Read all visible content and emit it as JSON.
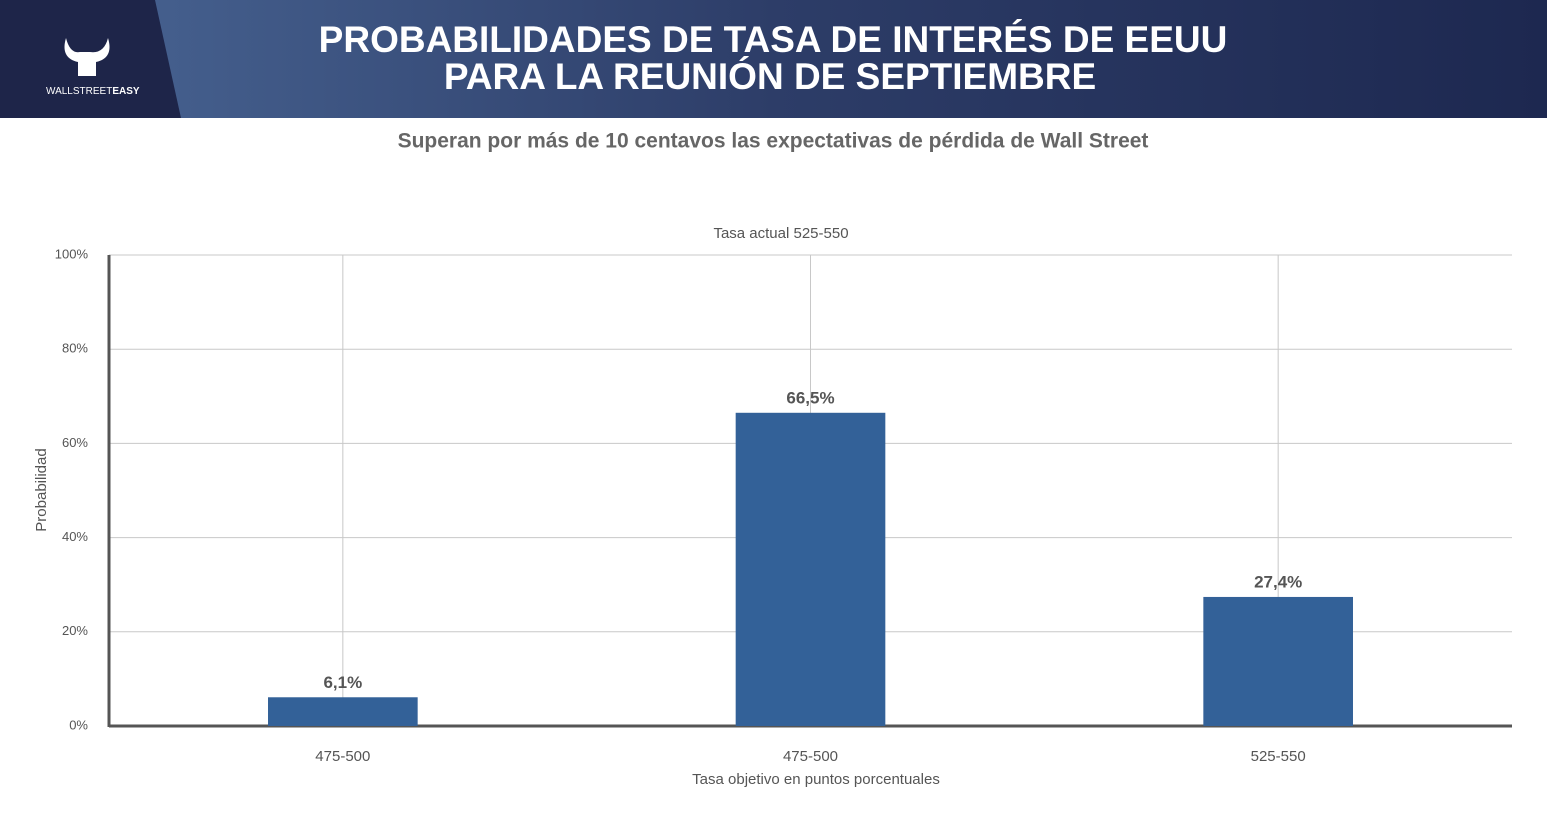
{
  "logo": {
    "text": "WALLSTREET",
    "bold": "EASY"
  },
  "header": {
    "title": [
      "PROBABILIDADES DE TASA DE INTERÉS DE EEUU",
      "PARA LA REUNIÓN DE SEPTIEMBRE"
    ]
  },
  "subtitle": "Superan por más de 10 centavos las expectativas de pérdida de Wall Street",
  "chart_data": {
    "type": "bar",
    "title": "Tasa actual 525-550",
    "x_label": "Tasa objetivo en puntos porcentuales",
    "y_label": "Probabilidad",
    "categories": [
      "475-500",
      "475-500",
      "525-550"
    ],
    "values": [
      6.1,
      66.5,
      27.4
    ],
    "value_labels": [
      "6,1%",
      "66,5%",
      "27,4%"
    ],
    "color": "#336198",
    "ylim": [
      0,
      100
    ],
    "yticks": [
      {
        "value": 0,
        "label": "0%"
      },
      {
        "value": 20,
        "label": "20%"
      },
      {
        "value": 40,
        "label": "40%"
      },
      {
        "value": 60,
        "label": "60%"
      },
      {
        "value": 80,
        "label": "80%"
      },
      {
        "value": 100,
        "label": "100%"
      }
    ],
    "grid": true
  }
}
